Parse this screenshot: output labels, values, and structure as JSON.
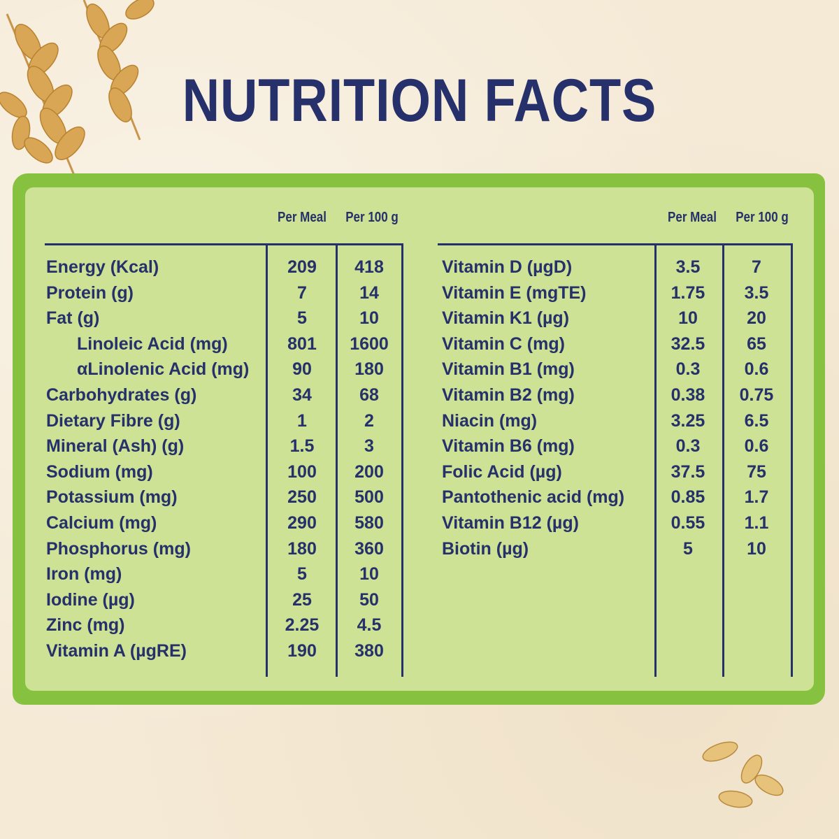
{
  "title": "NUTRITION FACTS",
  "headers": {
    "per_meal": "Per Meal",
    "per_100g": "Per 100 g"
  },
  "left_rows": [
    {
      "label": "Energy (Kcal)",
      "per_meal": "209",
      "per_100g": "418",
      "indent": false
    },
    {
      "label": "Protein (g)",
      "per_meal": "7",
      "per_100g": "14",
      "indent": false
    },
    {
      "label": "Fat (g)",
      "per_meal": "5",
      "per_100g": "10",
      "indent": false
    },
    {
      "label": "Linoleic Acid (mg)",
      "per_meal": "801",
      "per_100g": "1600",
      "indent": true
    },
    {
      "label": "αLinolenic Acid (mg)",
      "per_meal": "90",
      "per_100g": "180",
      "indent": true
    },
    {
      "label": "Carbohydrates (g)",
      "per_meal": "34",
      "per_100g": "68",
      "indent": false
    },
    {
      "label": "Dietary Fibre (g)",
      "per_meal": "1",
      "per_100g": "2",
      "indent": false
    },
    {
      "label": "Mineral (Ash) (g)",
      "per_meal": "1.5",
      "per_100g": "3",
      "indent": false
    },
    {
      "label": "Sodium (mg)",
      "per_meal": "100",
      "per_100g": "200",
      "indent": false
    },
    {
      "label": "Potassium (mg)",
      "per_meal": "250",
      "per_100g": "500",
      "indent": false
    },
    {
      "label": "Calcium (mg)",
      "per_meal": "290",
      "per_100g": "580",
      "indent": false
    },
    {
      "label": "Phosphorus (mg)",
      "per_meal": "180",
      "per_100g": "360",
      "indent": false
    },
    {
      "label": "Iron (mg)",
      "per_meal": "5",
      "per_100g": "10",
      "indent": false
    },
    {
      "label": "Iodine (µg)",
      "per_meal": "25",
      "per_100g": "50",
      "indent": false
    },
    {
      "label": "Zinc (mg)",
      "per_meal": "2.25",
      "per_100g": "4.5",
      "indent": false
    },
    {
      "label": "Vitamin A (µgRE)",
      "per_meal": "190",
      "per_100g": "380",
      "indent": false
    }
  ],
  "right_rows": [
    {
      "label": "Vitamin D (µgD)",
      "per_meal": "3.5",
      "per_100g": "7"
    },
    {
      "label": "Vitamin E (mgTE)",
      "per_meal": "1.75",
      "per_100g": "3.5"
    },
    {
      "label": "Vitamin K1 (µg)",
      "per_meal": "10",
      "per_100g": "20"
    },
    {
      "label": "Vitamin C (mg)",
      "per_meal": "32.5",
      "per_100g": "65"
    },
    {
      "label": "Vitamin B1 (mg)",
      "per_meal": "0.3",
      "per_100g": "0.6"
    },
    {
      "label": "Vitamin B2 (mg)",
      "per_meal": "0.38",
      "per_100g": "0.75"
    },
    {
      "label": "Niacin (mg)",
      "per_meal": "3.25",
      "per_100g": "6.5"
    },
    {
      "label": "Vitamin B6 (mg)",
      "per_meal": "0.3",
      "per_100g": "0.6"
    },
    {
      "label": "Folic Acid (µg)",
      "per_meal": "37.5",
      "per_100g": "75"
    },
    {
      "label": "Pantothenic acid (mg)",
      "per_meal": "0.85",
      "per_100g": "1.7"
    },
    {
      "label": "Vitamin B12 (µg)",
      "per_meal": "0.55",
      "per_100g": "1.1"
    },
    {
      "label": "Biotin (µg)",
      "per_meal": "5",
      "per_100g": "10"
    }
  ],
  "colors": {
    "text": "#26306a",
    "panel_border": "#86c23f",
    "panel_fill": "#cde294",
    "background": "#f5ead6"
  },
  "decorations": {
    "top_left": "wheat-stalks-icon",
    "bottom_right": "wheat-grains-icon"
  }
}
